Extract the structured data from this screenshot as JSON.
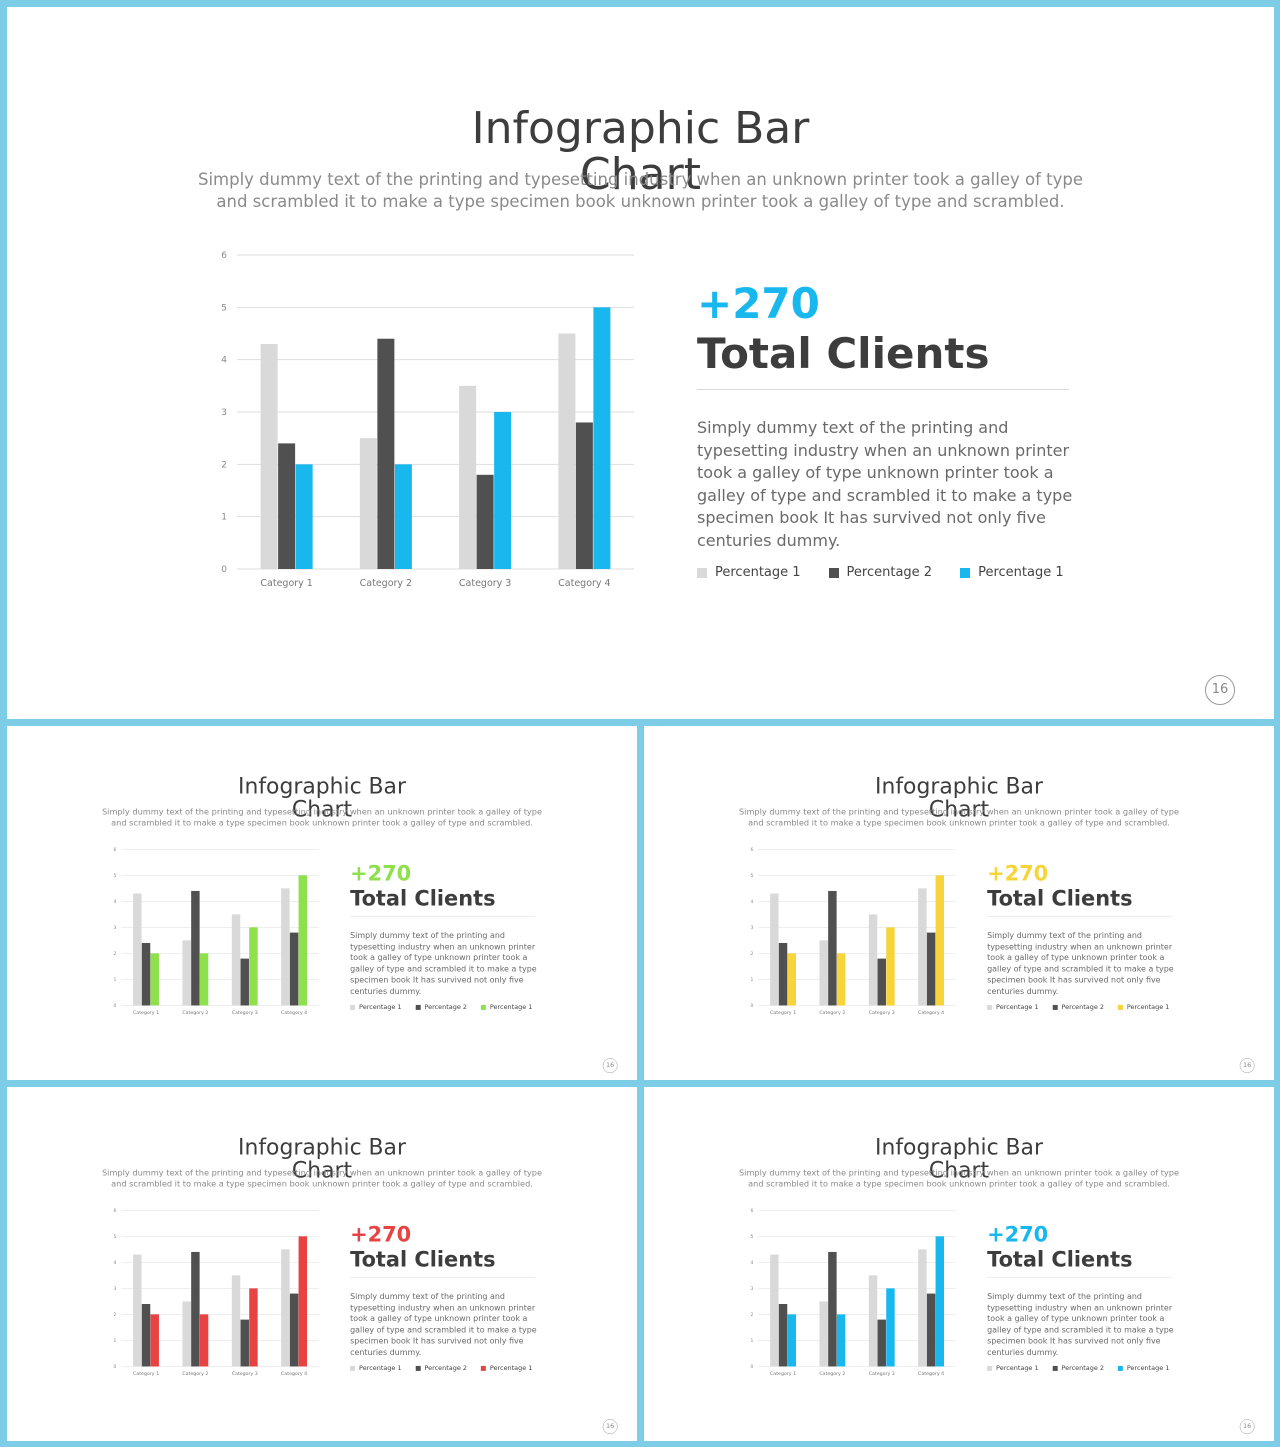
{
  "slide": {
    "title_line1": "Infographic Bar",
    "title_line2": "Chart",
    "subtitle": "Simply dummy text of the printing and typesetting industry when an unknown printer took a galley of type and scrambled it to make a type specimen book unknown printer took a galley of type and scrambled.",
    "big_number": "+270",
    "big_label": "Total Clients",
    "body": "Simply dummy text of the printing and typesetting industry when an unknown printer took a galley of type unknown printer took a galley of type and scrambled it to make a type specimen book It has survived not only five centuries dummy.",
    "legend": [
      "Percentage 1",
      "Percentage 2",
      "Percentage 1"
    ],
    "page_number": "16"
  },
  "variants": [
    {
      "accent": "#18b8ef"
    },
    {
      "accent": "#8ee04c"
    },
    {
      "accent": "#f7d43a"
    },
    {
      "accent": "#e84343"
    },
    {
      "accent": "#18b8ef"
    }
  ],
  "chart_data": {
    "type": "bar",
    "categories": [
      "Category 1",
      "Category 2",
      "Category 3",
      "Category 4"
    ],
    "series": [
      {
        "name": "Percentage 1",
        "values": [
          4.3,
          2.5,
          3.5,
          4.5
        ],
        "color": "#d9d9d9"
      },
      {
        "name": "Percentage 2",
        "values": [
          2.4,
          4.4,
          1.8,
          2.8
        ],
        "color": "#505050"
      },
      {
        "name": "Percentage 1",
        "values": [
          2.0,
          2.0,
          3.0,
          5.0
        ],
        "color": "accent"
      }
    ],
    "ylim": [
      0,
      6
    ],
    "yticks": [
      0,
      1,
      2,
      3,
      4,
      5,
      6
    ],
    "grid": true,
    "legend": "right"
  }
}
